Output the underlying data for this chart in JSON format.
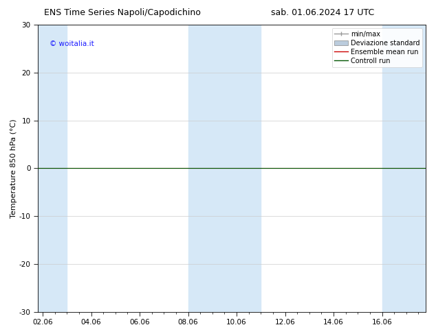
{
  "title_left": "ENS Time Series Napoli/Capodichino",
  "title_right": "sab. 01.06.2024 17 UTC",
  "ylabel": "Temperature 850 hPa (°C)",
  "xlabel": "",
  "ylim": [
    -30,
    30
  ],
  "yticks": [
    -30,
    -20,
    -10,
    0,
    10,
    20,
    30
  ],
  "xtick_labels": [
    "02.06",
    "04.06",
    "06.06",
    "08.06",
    "10.06",
    "12.06",
    "14.06",
    "16.06"
  ],
  "xtick_positions": [
    0,
    2,
    4,
    6,
    8,
    10,
    12,
    14
  ],
  "xlim": [
    -0.2,
    15.8
  ],
  "watermark": "© woitalia.it",
  "watermark_color": "#1a1aff",
  "bg_color": "#ffffff",
  "plot_bg_color": "#ffffff",
  "shaded_bands": [
    {
      "x_start": -0.2,
      "x_end": 1.0,
      "color": "#d6e8f7"
    },
    {
      "x_start": 6.0,
      "x_end": 9.0,
      "color": "#d6e8f7"
    },
    {
      "x_start": 14.0,
      "x_end": 15.8,
      "color": "#d6e8f7"
    }
  ],
  "ensemble_mean_color": "#cc0000",
  "control_run_color": "#005500",
  "min_max_color": "#aaaaaa",
  "std_dev_color": "#bbccdd",
  "legend_labels": [
    "min/max",
    "Deviazione standard",
    "Ensemble mean run",
    "Controll run"
  ],
  "legend_colors": [
    "#999999",
    "#bbccdd",
    "#cc0000",
    "#005500"
  ],
  "title_fontsize": 9,
  "tick_fontsize": 7.5,
  "legend_fontsize": 7,
  "ylabel_fontsize": 8,
  "watermark_fontsize": 7.5
}
